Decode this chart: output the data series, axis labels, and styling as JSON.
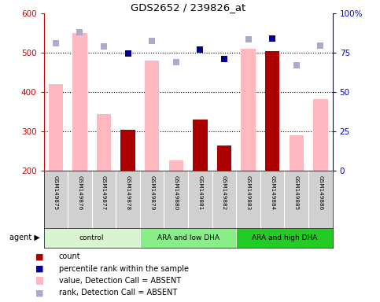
{
  "title": "GDS2652 / 239826_at",
  "samples": [
    "GSM149875",
    "GSM149876",
    "GSM149877",
    "GSM149878",
    "GSM149879",
    "GSM149880",
    "GSM149881",
    "GSM149882",
    "GSM149883",
    "GSM149884",
    "GSM149885",
    "GSM149886"
  ],
  "groups": [
    {
      "label": "control",
      "color": "#d8f5d0",
      "start": 0,
      "end": 3
    },
    {
      "label": "ARA and low DHA",
      "color": "#88ee88",
      "start": 4,
      "end": 7
    },
    {
      "label": "ARA and high DHA",
      "color": "#22cc22",
      "start": 8,
      "end": 11
    }
  ],
  "bar_values_pink": [
    420,
    550,
    345,
    null,
    480,
    225,
    null,
    null,
    510,
    null,
    290,
    382
  ],
  "bar_values_dark": [
    null,
    null,
    null,
    305,
    null,
    null,
    330,
    265,
    null,
    504,
    null,
    null
  ],
  "scatter_blue_dark": [
    null,
    null,
    null,
    499,
    null,
    null,
    509,
    485,
    null,
    537,
    null,
    null
  ],
  "scatter_blue_light": [
    524,
    552,
    516,
    null,
    530,
    476,
    null,
    null,
    535,
    null,
    469,
    518
  ],
  "ylim_left": [
    200,
    600
  ],
  "ylim_right": [
    0,
    100
  ],
  "yticks_left": [
    200,
    300,
    400,
    500,
    600
  ],
  "yticks_right": [
    0,
    25,
    50,
    75,
    100
  ],
  "ylabel_left_color": "#cc0000",
  "ylabel_right_color": "#0000cc",
  "grid_values": [
    300,
    400,
    500
  ],
  "legend_items": [
    {
      "color": "#aa0000",
      "label": "count"
    },
    {
      "color": "#00008b",
      "label": "percentile rank within the sample"
    },
    {
      "color": "#ffb8c0",
      "label": "value, Detection Call = ABSENT"
    },
    {
      "color": "#aaaacc",
      "label": "rank, Detection Call = ABSENT"
    }
  ],
  "agent_label": "agent",
  "background_color": "#ffffff"
}
